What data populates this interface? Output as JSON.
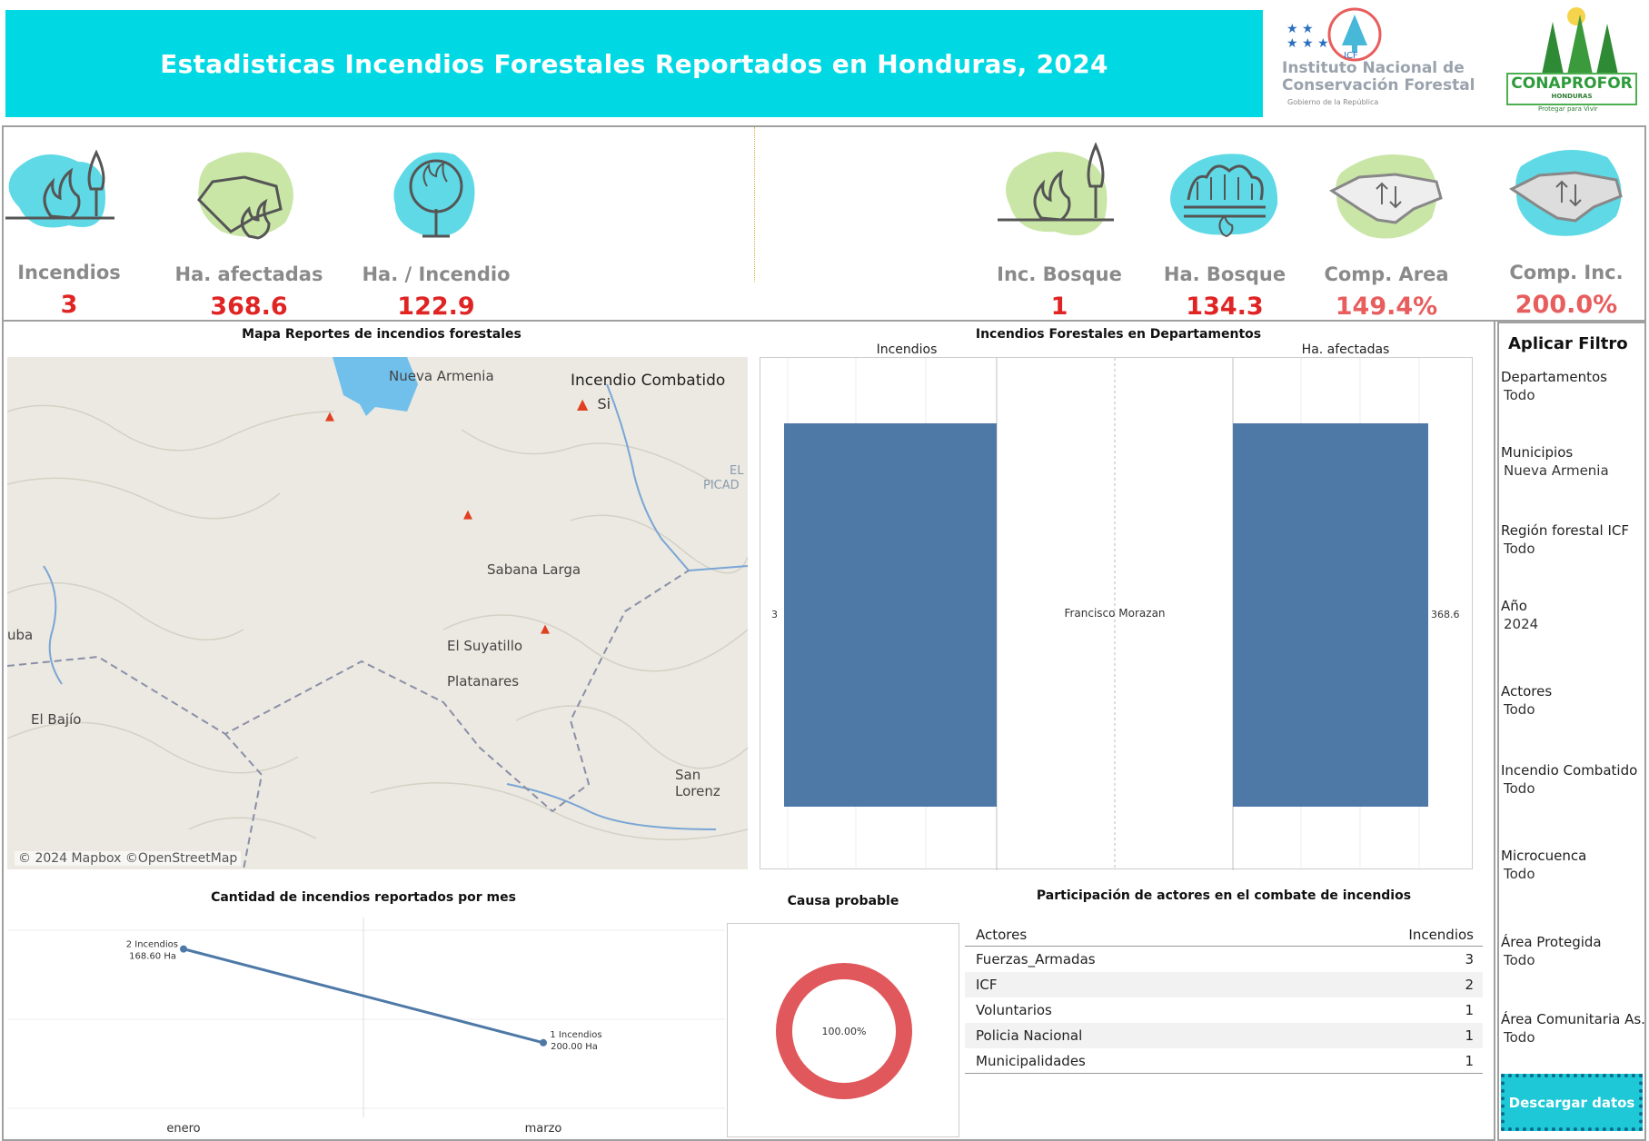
{
  "header": {
    "title": "Estadisticas Incendios Forestales Reportados en Honduras, 2024",
    "icf_name_line1": "Instituto Nacional de",
    "icf_name_line2": "Conservación Forestal",
    "icf_gov": "Gobierno de la República",
    "icf_abbr": "ICF",
    "conaprofor_name": "CONAPROFOR",
    "conaprofor_country": "HONDURAS",
    "conaprofor_tagline": "Protegar para Vivir"
  },
  "kpis": [
    {
      "label": "Incendios",
      "value": "3",
      "icon": "fire-and-tree-icon"
    },
    {
      "label": "Ha. afectadas",
      "value": "368.6",
      "icon": "map-fire-icon"
    },
    {
      "label": "Ha. / Incendio",
      "value": "122.9",
      "icon": "burning-tree-icon"
    },
    {
      "label": "Inc. Bosque",
      "value": "1",
      "icon": "fire-and-tree-icon"
    },
    {
      "label": "Ha. Bosque",
      "value": "134.3",
      "icon": "forest-fire-icon"
    },
    {
      "label": "Comp. Area",
      "value": "149.4%",
      "icon": "map-compare-icon"
    },
    {
      "label": "Comp. Inc.",
      "value": "200.0%",
      "icon": "map-compare-icon"
    }
  ],
  "map": {
    "title": "Mapa Reportes de incendios forestales",
    "legend_title": "Incendio Combatido",
    "legend_item": "Si",
    "places": [
      "Nueva Armenia",
      "Sabana Larga",
      "El Suyatillo",
      "Platanares",
      "El Bajío",
      "San Lorenz",
      "uba",
      "EL",
      "PICAD"
    ],
    "attribution": "© 2024 Mapbox ©OpenStreetMap"
  },
  "bar_chart_title": "Incendios Forestales en Departamentos",
  "line_chart_title": "Cantidad de incendios reportados por mes",
  "donut_title": "Causa probable",
  "actors_title": "Participación de actores en el combate de incendios",
  "chart_data": [
    {
      "type": "bar",
      "title": "Incendios Forestales en Departamentos",
      "categories": [
        "Francisco Morazan"
      ],
      "series": [
        {
          "name": "Incendios",
          "values": [
            3
          ]
        },
        {
          "name": "Ha. afectadas",
          "values": [
            368.6
          ]
        }
      ],
      "value_labels": [
        "3",
        "368.6"
      ]
    },
    {
      "type": "line",
      "title": "Cantidad de incendios reportados por mes",
      "categories": [
        "enero",
        "marzo"
      ],
      "series": [
        {
          "name": "Incendios",
          "values": [
            2,
            1
          ]
        }
      ],
      "point_labels": [
        [
          "2 Incendios",
          "168.60 Ha"
        ],
        [
          "1 Incendios",
          "200.00 Ha"
        ]
      ]
    },
    {
      "type": "pie",
      "title": "Causa probable",
      "values": [
        100
      ],
      "label": "100.00%",
      "colors": [
        "#e0585b"
      ]
    },
    {
      "type": "table",
      "title": "Participación de actores en el combate de incendios",
      "columns": [
        "Actores",
        "Incendios"
      ],
      "rows": [
        [
          "Fuerzas_Armadas",
          3
        ],
        [
          "ICF",
          2
        ],
        [
          "Voluntarios",
          1
        ],
        [
          "Policia Nacional",
          1
        ],
        [
          "Municipalidades",
          1
        ]
      ]
    }
  ],
  "filters": {
    "title": "Aplicar Filtro",
    "items": [
      {
        "label": "Departamentos",
        "value": "Todo"
      },
      {
        "label": "Municipios",
        "value": "Nueva Armenia"
      },
      {
        "label": "Región forestal ICF",
        "value": "Todo"
      },
      {
        "label": "Año",
        "value": "2024"
      },
      {
        "label": "Actores",
        "value": "Todo"
      },
      {
        "label": "Incendio Combatido",
        "value": "Todo"
      },
      {
        "label": "Microcuenca",
        "value": "Todo"
      },
      {
        "label": "Área Protegida",
        "value": "Todo"
      },
      {
        "label": "Área Comunitaria As..",
        "value": "Todo"
      }
    ],
    "download_label": "Descargar datos"
  },
  "colors": {
    "header_bg": "#00d8e4",
    "kpi_value": "#e02424",
    "bar": "#4e79a7",
    "line": "#4e79a7",
    "donut": "#e0585b",
    "icon_cyan": "#5fd9e6",
    "icon_green": "#c9e6a7"
  }
}
